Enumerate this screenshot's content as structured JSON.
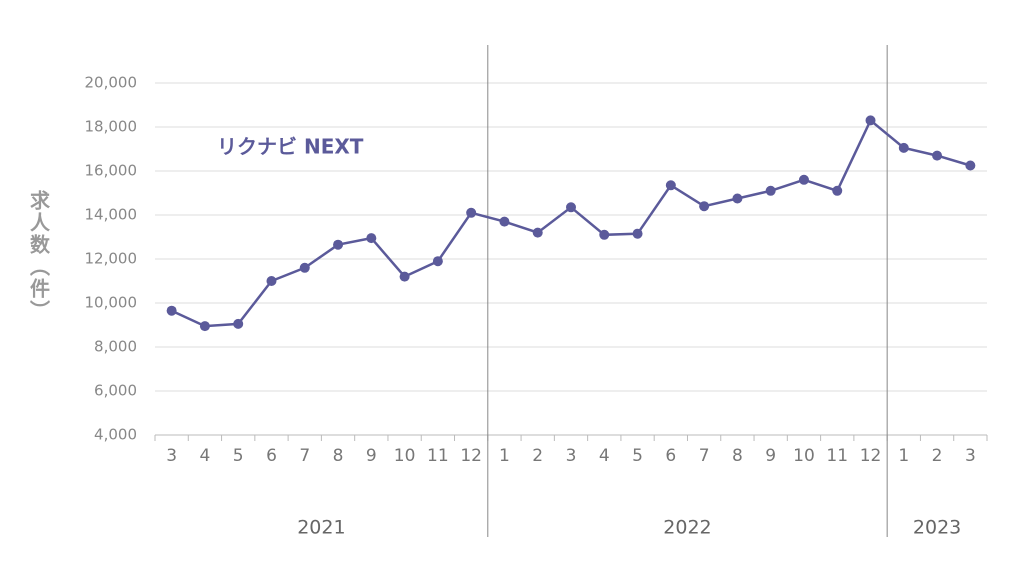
{
  "chart_data": {
    "type": "line",
    "y_label": "求人数（件）",
    "categories": [
      "3",
      "4",
      "5",
      "6",
      "7",
      "8",
      "9",
      "10",
      "11",
      "12",
      "1",
      "2",
      "3",
      "4",
      "5",
      "6",
      "7",
      "8",
      "9",
      "10",
      "11",
      "12",
      "1",
      "2",
      "3"
    ],
    "groups": [
      {
        "name": "2021",
        "size": 10
      },
      {
        "name": "2022",
        "size": 12
      },
      {
        "name": "2023",
        "size": 3
      }
    ],
    "series": [
      {
        "name": "リクナビ NEXT",
        "color": "#5b5a9a",
        "values": [
          9650,
          8950,
          9050,
          11000,
          11600,
          12650,
          12950,
          11200,
          11900,
          14100,
          13700,
          13200,
          14350,
          13100,
          13150,
          15350,
          14400,
          14750,
          15100,
          15600,
          15100,
          18300,
          17050,
          16700,
          16250
        ]
      }
    ],
    "ylim": [
      4000,
      20000
    ],
    "yticks": [
      {
        "value": 4000,
        "label": "4,000"
      },
      {
        "value": 6000,
        "label": "6,000"
      },
      {
        "value": 8000,
        "label": "8,000"
      },
      {
        "value": 10000,
        "label": "10,000"
      },
      {
        "value": 12000,
        "label": "12,000"
      },
      {
        "value": 14000,
        "label": "14,000"
      },
      {
        "value": 16000,
        "label": "16,000"
      },
      {
        "value": 18000,
        "label": "18,000"
      },
      {
        "value": 20000,
        "label": "20,000"
      }
    ],
    "grid": true
  }
}
